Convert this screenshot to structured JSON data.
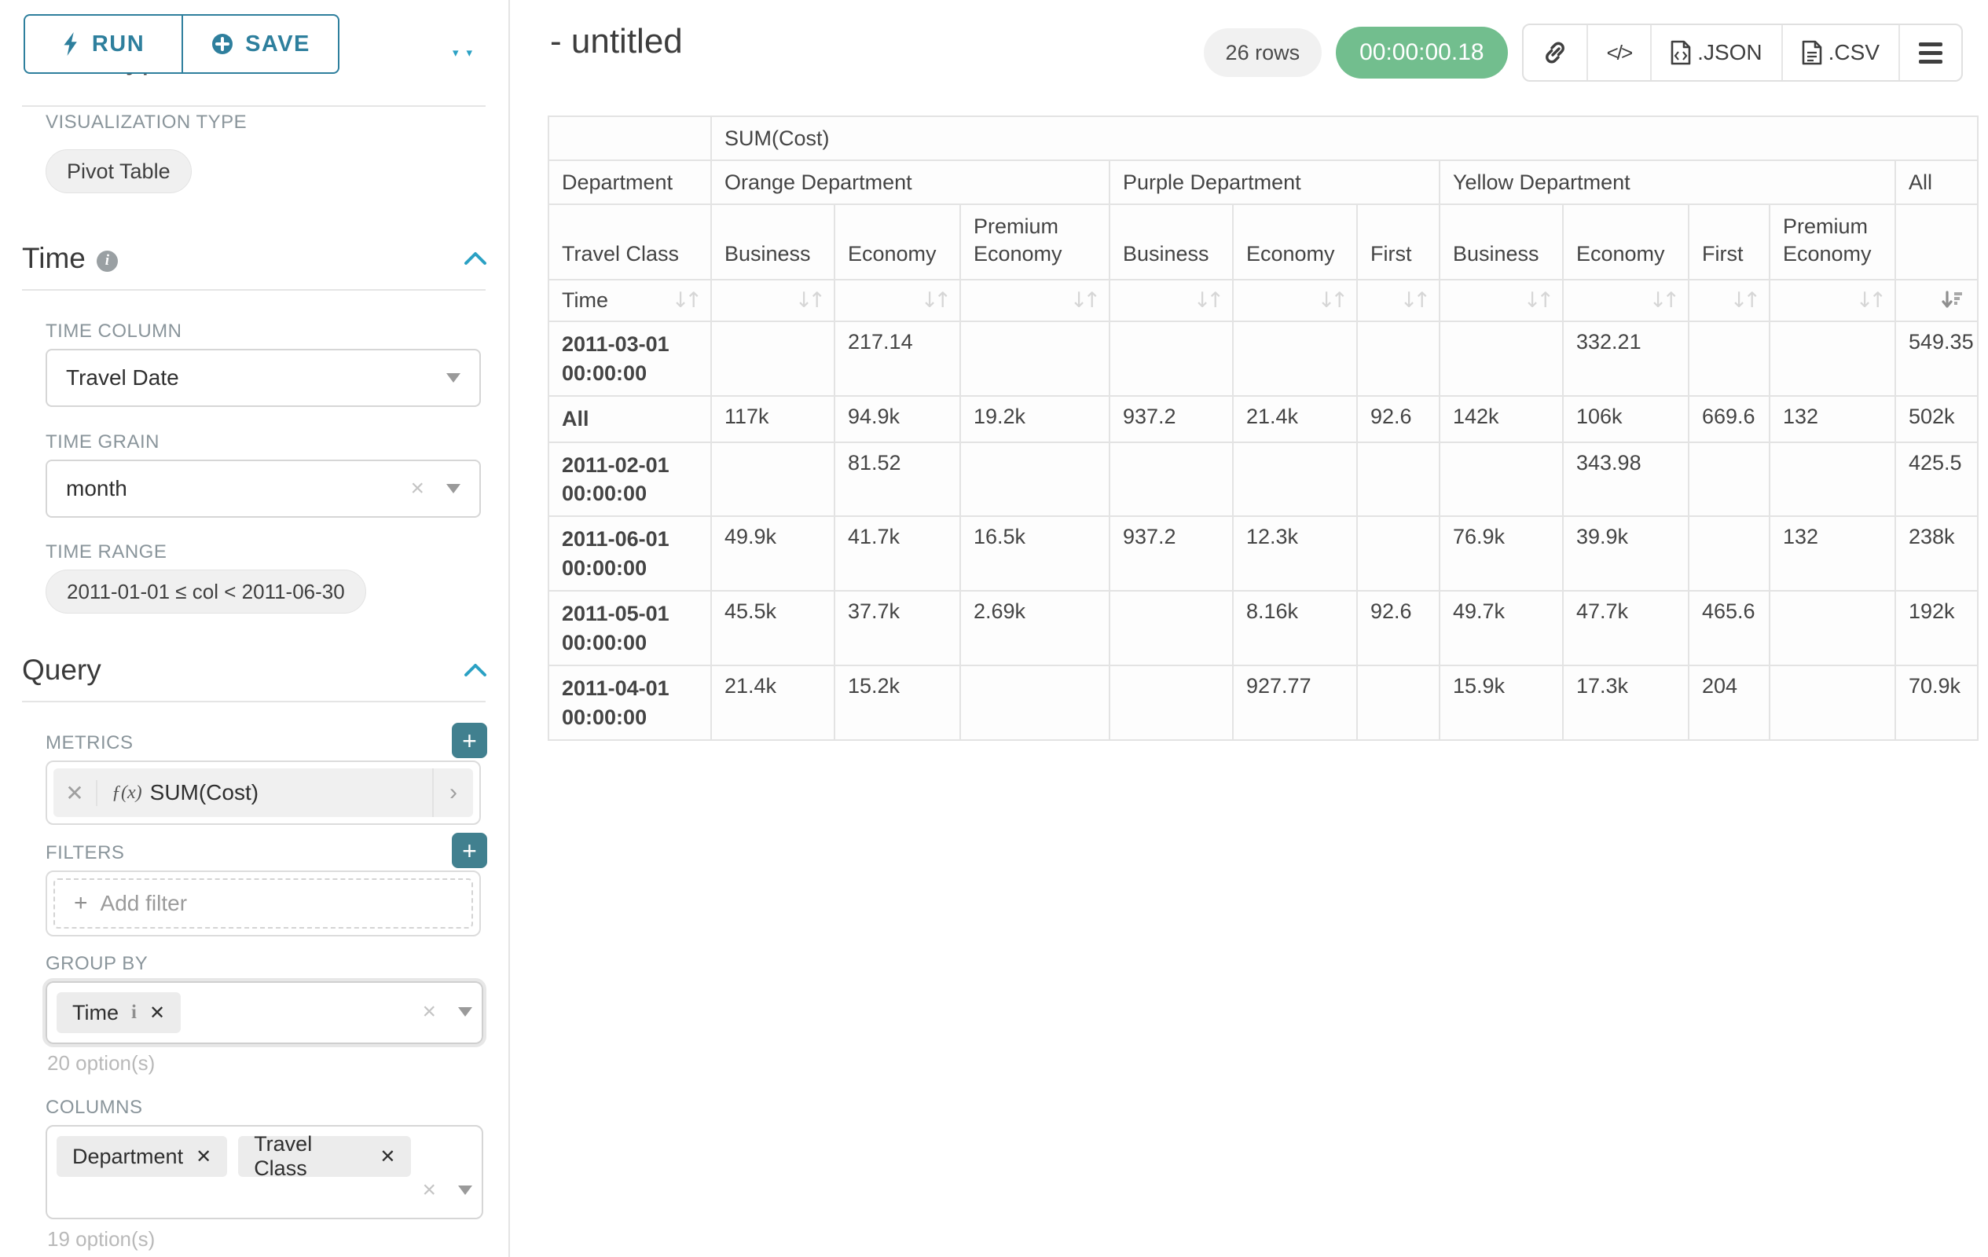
{
  "sidebar": {
    "run_label": "RUN",
    "save_label": "SAVE",
    "chart_type_heading": "Chart Type",
    "visualization_type_label": "VISUALIZATION TYPE",
    "visualization_type_value": "Pivot Table",
    "time_section": {
      "title": "Time",
      "time_column_label": "TIME COLUMN",
      "time_column_value": "Travel Date",
      "time_grain_label": "TIME GRAIN",
      "time_grain_value": "month",
      "time_range_label": "TIME RANGE",
      "time_range_value": "2011-01-01 ≤ col < 2011-06-30"
    },
    "query_section": {
      "title": "Query",
      "metrics_label": "METRICS",
      "metric_prefix": "ƒ(x)",
      "metric_value": "SUM(Cost)",
      "filters_label": "FILTERS",
      "add_filter_label": "Add filter",
      "group_by_label": "GROUP BY",
      "group_by_values": [
        "Time"
      ],
      "group_by_hint": "20 option(s)",
      "columns_label": "COLUMNS",
      "columns_values": [
        "Department",
        "Travel Class"
      ],
      "columns_hint": "19 option(s)"
    }
  },
  "header": {
    "title": "- untitled",
    "row_count": "26 rows",
    "elapsed_time": "00:00:00.18",
    "export_json_label": ".JSON",
    "export_csv_label": ".CSV"
  },
  "colors": {
    "accent_teal": "#2e7f9d",
    "plus_button_teal": "#41808f",
    "chevron_blue": "#2ba1c4",
    "timer_green": "#72be8e"
  },
  "chart_data": {
    "type": "table",
    "metric_label": "SUM(Cost)",
    "row_header_labels": {
      "department": "Department",
      "travel_class": "Travel Class",
      "time": "Time"
    },
    "column_groups": [
      {
        "label": "Orange Department",
        "columns": [
          "Business",
          "Economy",
          "Premium Economy"
        ]
      },
      {
        "label": "Purple Department",
        "columns": [
          "Business",
          "Economy",
          "First"
        ]
      },
      {
        "label": "Yellow Department",
        "columns": [
          "Business",
          "Economy",
          "First",
          "Premium Economy"
        ]
      },
      {
        "label": "All",
        "columns": [
          ""
        ]
      }
    ],
    "rows": [
      {
        "label": "2011-03-01 00:00:00",
        "values": [
          "",
          "217.14",
          "",
          "",
          "",
          "",
          "",
          "332.21",
          "",
          "",
          "549.35"
        ]
      },
      {
        "label": "All",
        "values": [
          "117k",
          "94.9k",
          "19.2k",
          "937.2",
          "21.4k",
          "92.6",
          "142k",
          "106k",
          "669.6",
          "132",
          "502k"
        ]
      },
      {
        "label": "2011-02-01 00:00:00",
        "values": [
          "",
          "81.52",
          "",
          "",
          "",
          "",
          "",
          "343.98",
          "",
          "",
          "425.5"
        ]
      },
      {
        "label": "2011-06-01 00:00:00",
        "values": [
          "49.9k",
          "41.7k",
          "16.5k",
          "937.2",
          "12.3k",
          "",
          "76.9k",
          "39.9k",
          "",
          "132",
          "238k"
        ]
      },
      {
        "label": "2011-05-01 00:00:00",
        "values": [
          "45.5k",
          "37.7k",
          "2.69k",
          "",
          "8.16k",
          "92.6",
          "49.7k",
          "47.7k",
          "465.6",
          "",
          "192k"
        ]
      },
      {
        "label": "2011-04-01 00:00:00",
        "values": [
          "21.4k",
          "15.2k",
          "",
          "",
          "927.77",
          "",
          "15.9k",
          "17.3k",
          "204",
          "",
          "70.9k"
        ]
      }
    ],
    "sort": {
      "active_column": "All",
      "direction": "desc"
    }
  }
}
